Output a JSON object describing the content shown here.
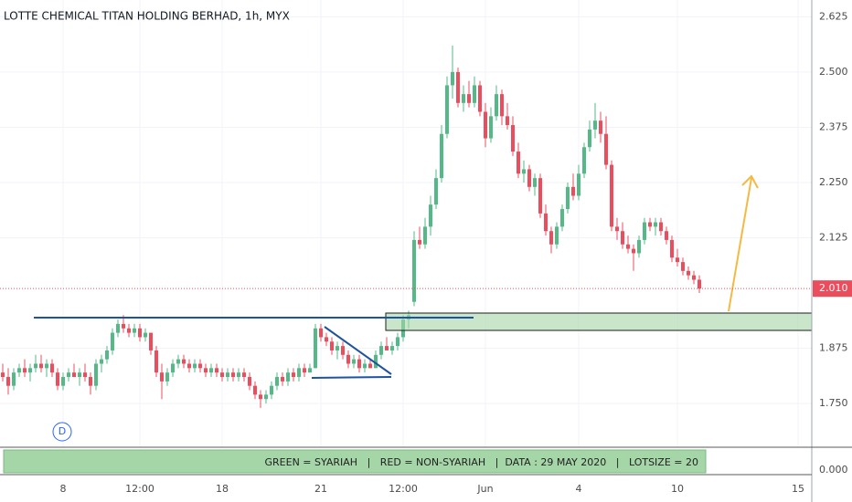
{
  "chart_data": {
    "type": "candlestick",
    "title": "LOTTE CHEMICAL TITAN HOLDING BERHAD, 1h, MYX",
    "up_color": "#53b987",
    "down_color": "#eb4d5c",
    "grid": true,
    "xlim": [
      -0.5,
      147.5
    ],
    "xticks": [
      {
        "value": 11,
        "label": "8"
      },
      {
        "value": 25,
        "label": "12:00"
      },
      {
        "value": 40,
        "label": "18"
      },
      {
        "value": 58,
        "label": "21"
      },
      {
        "value": 73,
        "label": "12:00"
      },
      {
        "value": 88,
        "label": "Jun"
      },
      {
        "value": 105,
        "label": "4"
      },
      {
        "value": 123,
        "label": "10"
      },
      {
        "value": 145,
        "label": "15"
      }
    ],
    "ylim": [
      1.651,
      2.663
    ],
    "yticks": [
      2.625,
      {
        "value": 2.5,
        "label": "2.500"
      },
      2.375,
      {
        "value": 2.25,
        "label": "2.250"
      },
      2.125,
      1.875,
      {
        "value": 1.75,
        "label": "1.750"
      }
    ],
    "last_price": {
      "value": 2.01,
      "label": "2.010"
    },
    "lower_ytick": {
      "value": 0,
      "label": "0.000"
    },
    "badge": "D",
    "banner": "GREEN = SYARIAH   |   RED = NON-SYARIAH   |  DATA : 29 MAY 2020   |   LOTSIZE = 20",
    "candles": [
      [
        1.82,
        1.84,
        1.8,
        1.81
      ],
      [
        1.81,
        1.83,
        1.77,
        1.79
      ],
      [
        1.79,
        1.83,
        1.78,
        1.82
      ],
      [
        1.82,
        1.84,
        1.81,
        1.83
      ],
      [
        1.83,
        1.85,
        1.81,
        1.82
      ],
      [
        1.82,
        1.84,
        1.8,
        1.83
      ],
      [
        1.83,
        1.86,
        1.82,
        1.84
      ],
      [
        1.84,
        1.86,
        1.82,
        1.83
      ],
      [
        1.83,
        1.85,
        1.81,
        1.84
      ],
      [
        1.84,
        1.85,
        1.81,
        1.82
      ],
      [
        1.82,
        1.83,
        1.78,
        1.79
      ],
      [
        1.79,
        1.82,
        1.78,
        1.81
      ],
      [
        1.81,
        1.83,
        1.8,
        1.82
      ],
      [
        1.82,
        1.84,
        1.81,
        1.81
      ],
      [
        1.81,
        1.83,
        1.79,
        1.82
      ],
      [
        1.82,
        1.84,
        1.8,
        1.81
      ],
      [
        1.81,
        1.82,
        1.77,
        1.79
      ],
      [
        1.79,
        1.85,
        1.78,
        1.84
      ],
      [
        1.84,
        1.86,
        1.82,
        1.85
      ],
      [
        1.85,
        1.88,
        1.84,
        1.87
      ],
      [
        1.87,
        1.92,
        1.86,
        1.91
      ],
      [
        1.91,
        1.94,
        1.9,
        1.93
      ],
      [
        1.93,
        1.95,
        1.91,
        1.92
      ],
      [
        1.92,
        1.93,
        1.9,
        1.91
      ],
      [
        1.91,
        1.93,
        1.9,
        1.92
      ],
      [
        1.92,
        1.93,
        1.89,
        1.9
      ],
      [
        1.9,
        1.92,
        1.89,
        1.91
      ],
      [
        1.91,
        1.91,
        1.86,
        1.87
      ],
      [
        1.87,
        1.88,
        1.81,
        1.82
      ],
      [
        1.82,
        1.84,
        1.76,
        1.8
      ],
      [
        1.8,
        1.83,
        1.79,
        1.82
      ],
      [
        1.82,
        1.85,
        1.81,
        1.84
      ],
      [
        1.84,
        1.86,
        1.83,
        1.85
      ],
      [
        1.85,
        1.86,
        1.83,
        1.84
      ],
      [
        1.84,
        1.85,
        1.82,
        1.83
      ],
      [
        1.83,
        1.85,
        1.82,
        1.84
      ],
      [
        1.84,
        1.85,
        1.82,
        1.83
      ],
      [
        1.83,
        1.84,
        1.81,
        1.82
      ],
      [
        1.82,
        1.84,
        1.81,
        1.83
      ],
      [
        1.83,
        1.84,
        1.81,
        1.82
      ],
      [
        1.82,
        1.83,
        1.8,
        1.81
      ],
      [
        1.81,
        1.83,
        1.8,
        1.82
      ],
      [
        1.82,
        1.83,
        1.8,
        1.81
      ],
      [
        1.81,
        1.83,
        1.8,
        1.82
      ],
      [
        1.82,
        1.83,
        1.8,
        1.81
      ],
      [
        1.81,
        1.82,
        1.78,
        1.79
      ],
      [
        1.79,
        1.8,
        1.76,
        1.77
      ],
      [
        1.77,
        1.78,
        1.74,
        1.76
      ],
      [
        1.76,
        1.78,
        1.75,
        1.77
      ],
      [
        1.77,
        1.8,
        1.76,
        1.79
      ],
      [
        1.79,
        1.82,
        1.78,
        1.81
      ],
      [
        1.81,
        1.82,
        1.79,
        1.8
      ],
      [
        1.8,
        1.83,
        1.79,
        1.82
      ],
      [
        1.82,
        1.83,
        1.8,
        1.81
      ],
      [
        1.81,
        1.84,
        1.8,
        1.83
      ],
      [
        1.83,
        1.84,
        1.81,
        1.82
      ],
      [
        1.82,
        1.84,
        1.82,
        1.83
      ],
      [
        1.83,
        1.93,
        1.83,
        1.92
      ],
      [
        1.92,
        1.93,
        1.89,
        1.9
      ],
      [
        1.9,
        1.91,
        1.88,
        1.89
      ],
      [
        1.89,
        1.9,
        1.86,
        1.87
      ],
      [
        1.87,
        1.89,
        1.85,
        1.88
      ],
      [
        1.88,
        1.89,
        1.85,
        1.86
      ],
      [
        1.86,
        1.87,
        1.83,
        1.84
      ],
      [
        1.84,
        1.86,
        1.83,
        1.85
      ],
      [
        1.85,
        1.86,
        1.82,
        1.83
      ],
      [
        1.83,
        1.85,
        1.82,
        1.84
      ],
      [
        1.84,
        1.85,
        1.83,
        1.83
      ],
      [
        1.83,
        1.87,
        1.83,
        1.86
      ],
      [
        1.86,
        1.89,
        1.85,
        1.88
      ],
      [
        1.88,
        1.9,
        1.87,
        1.87
      ],
      [
        1.87,
        1.89,
        1.86,
        1.88
      ],
      [
        1.88,
        1.91,
        1.87,
        1.9
      ],
      [
        1.9,
        1.95,
        1.89,
        1.94
      ],
      [
        1.94,
        1.96,
        1.92,
        1.95
      ],
      [
        1.98,
        2.14,
        1.97,
        2.12
      ],
      [
        2.12,
        2.15,
        2.1,
        2.11
      ],
      [
        2.11,
        2.17,
        2.1,
        2.15
      ],
      [
        2.15,
        2.22,
        2.13,
        2.2
      ],
      [
        2.2,
        2.28,
        2.19,
        2.26
      ],
      [
        2.26,
        2.38,
        2.25,
        2.36
      ],
      [
        2.36,
        2.49,
        2.35,
        2.47
      ],
      [
        2.47,
        2.56,
        2.44,
        2.5
      ],
      [
        2.5,
        2.51,
        2.42,
        2.43
      ],
      [
        2.43,
        2.47,
        2.41,
        2.45
      ],
      [
        2.45,
        2.48,
        2.42,
        2.43
      ],
      [
        2.43,
        2.49,
        2.42,
        2.47
      ],
      [
        2.47,
        2.48,
        2.4,
        2.41
      ],
      [
        2.41,
        2.43,
        2.33,
        2.35
      ],
      [
        2.35,
        2.42,
        2.34,
        2.4
      ],
      [
        2.4,
        2.47,
        2.39,
        2.45
      ],
      [
        2.45,
        2.46,
        2.38,
        2.4
      ],
      [
        2.4,
        2.43,
        2.37,
        2.38
      ],
      [
        2.38,
        2.4,
        2.31,
        2.32
      ],
      [
        2.32,
        2.34,
        2.26,
        2.27
      ],
      [
        2.27,
        2.3,
        2.25,
        2.28
      ],
      [
        2.28,
        2.29,
        2.23,
        2.24
      ],
      [
        2.24,
        2.27,
        2.22,
        2.26
      ],
      [
        2.26,
        2.27,
        2.17,
        2.18
      ],
      [
        2.18,
        2.2,
        2.13,
        2.14
      ],
      [
        2.14,
        2.15,
        2.09,
        2.11
      ],
      [
        2.11,
        2.16,
        2.1,
        2.15
      ],
      [
        2.15,
        2.2,
        2.14,
        2.19
      ],
      [
        2.19,
        2.25,
        2.18,
        2.24
      ],
      [
        2.24,
        2.27,
        2.21,
        2.22
      ],
      [
        2.22,
        2.29,
        2.21,
        2.27
      ],
      [
        2.27,
        2.34,
        2.26,
        2.33
      ],
      [
        2.33,
        2.39,
        2.32,
        2.37
      ],
      [
        2.37,
        2.43,
        2.35,
        2.39
      ],
      [
        2.39,
        2.41,
        2.34,
        2.36
      ],
      [
        2.36,
        2.4,
        2.28,
        2.29
      ],
      [
        2.29,
        2.3,
        2.14,
        2.15
      ],
      [
        2.15,
        2.17,
        2.12,
        2.14
      ],
      [
        2.14,
        2.16,
        2.1,
        2.11
      ],
      [
        2.11,
        2.13,
        2.09,
        2.1
      ],
      [
        2.1,
        2.11,
        2.05,
        2.09
      ],
      [
        2.09,
        2.13,
        2.08,
        2.12
      ],
      [
        2.12,
        2.17,
        2.11,
        2.16
      ],
      [
        2.16,
        2.17,
        2.14,
        2.15
      ],
      [
        2.15,
        2.17,
        2.13,
        2.16
      ],
      [
        2.16,
        2.17,
        2.13,
        2.14
      ],
      [
        2.14,
        2.15,
        2.11,
        2.12
      ],
      [
        2.12,
        2.13,
        2.07,
        2.08
      ],
      [
        2.08,
        2.1,
        2.06,
        2.07
      ],
      [
        2.07,
        2.08,
        2.04,
        2.05
      ],
      [
        2.05,
        2.06,
        2.03,
        2.04
      ],
      [
        2.04,
        2.05,
        2.02,
        2.03
      ],
      [
        2.03,
        2.04,
        2.0,
        2.01
      ]
    ]
  }
}
